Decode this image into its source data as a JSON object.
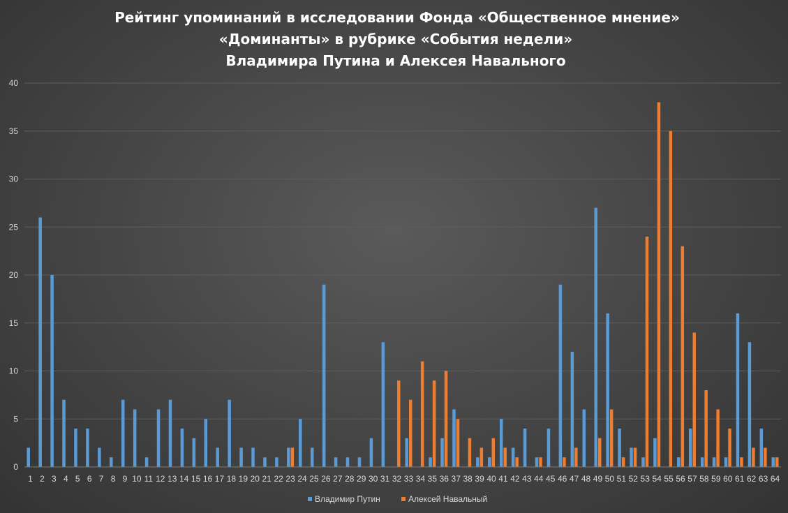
{
  "chart_data": {
    "type": "bar",
    "title": [
      "Рейтинг упоминаний в исследовании Фонда «Общественное мнение»",
      "«Доминанты» в рубрике «События недели»",
      "Владимира Путина и Алексея Навального"
    ],
    "xlabel": "",
    "ylabel": "",
    "ylim": [
      0,
      40
    ],
    "yticks": [
      0,
      5,
      10,
      15,
      20,
      25,
      30,
      35,
      40
    ],
    "grid": true,
    "legend_position": "bottom",
    "categories": [
      "1",
      "2",
      "3",
      "4",
      "5",
      "6",
      "7",
      "8",
      "9",
      "10",
      "11",
      "12",
      "13",
      "14",
      "15",
      "16",
      "17",
      "18",
      "19",
      "20",
      "21",
      "22",
      "23",
      "24",
      "25",
      "26",
      "27",
      "28",
      "29",
      "30",
      "31",
      "32",
      "33",
      "34",
      "35",
      "36",
      "37",
      "38",
      "39",
      "40",
      "41",
      "42",
      "43",
      "44",
      "45",
      "46",
      "47",
      "48",
      "49",
      "50",
      "51",
      "52",
      "53",
      "54",
      "55",
      "56",
      "57",
      "58",
      "59",
      "60",
      "61",
      "62",
      "63",
      "64"
    ],
    "series": [
      {
        "name": "Владимир Путин",
        "color": "#5b9bd5",
        "values": [
          2,
          26,
          20,
          7,
          4,
          4,
          2,
          1,
          7,
          6,
          1,
          6,
          7,
          4,
          3,
          5,
          2,
          7,
          2,
          2,
          1,
          1,
          2,
          5,
          2,
          19,
          1,
          1,
          1,
          3,
          13,
          0,
          3,
          0,
          1,
          3,
          6,
          0,
          1,
          1,
          5,
          2,
          4,
          1,
          4,
          19,
          12,
          6,
          27,
          16,
          4,
          2,
          1,
          3,
          0,
          1,
          4,
          1,
          1,
          1,
          16,
          13,
          4,
          1
        ]
      },
      {
        "name": "Алексей Навальный",
        "color": "#ed7d31",
        "values": [
          0,
          0,
          0,
          0,
          0,
          0,
          0,
          0,
          0,
          0,
          0,
          0,
          0,
          0,
          0,
          0,
          0,
          0,
          0,
          0,
          0,
          0,
          2,
          0,
          0,
          0,
          0,
          0,
          0,
          0,
          0,
          9,
          7,
          11,
          9,
          10,
          5,
          3,
          2,
          3,
          2,
          1,
          0,
          1,
          0,
          1,
          2,
          0,
          3,
          6,
          1,
          2,
          24,
          38,
          35,
          23,
          14,
          8,
          6,
          4,
          1,
          2,
          2,
          1
        ]
      }
    ]
  }
}
